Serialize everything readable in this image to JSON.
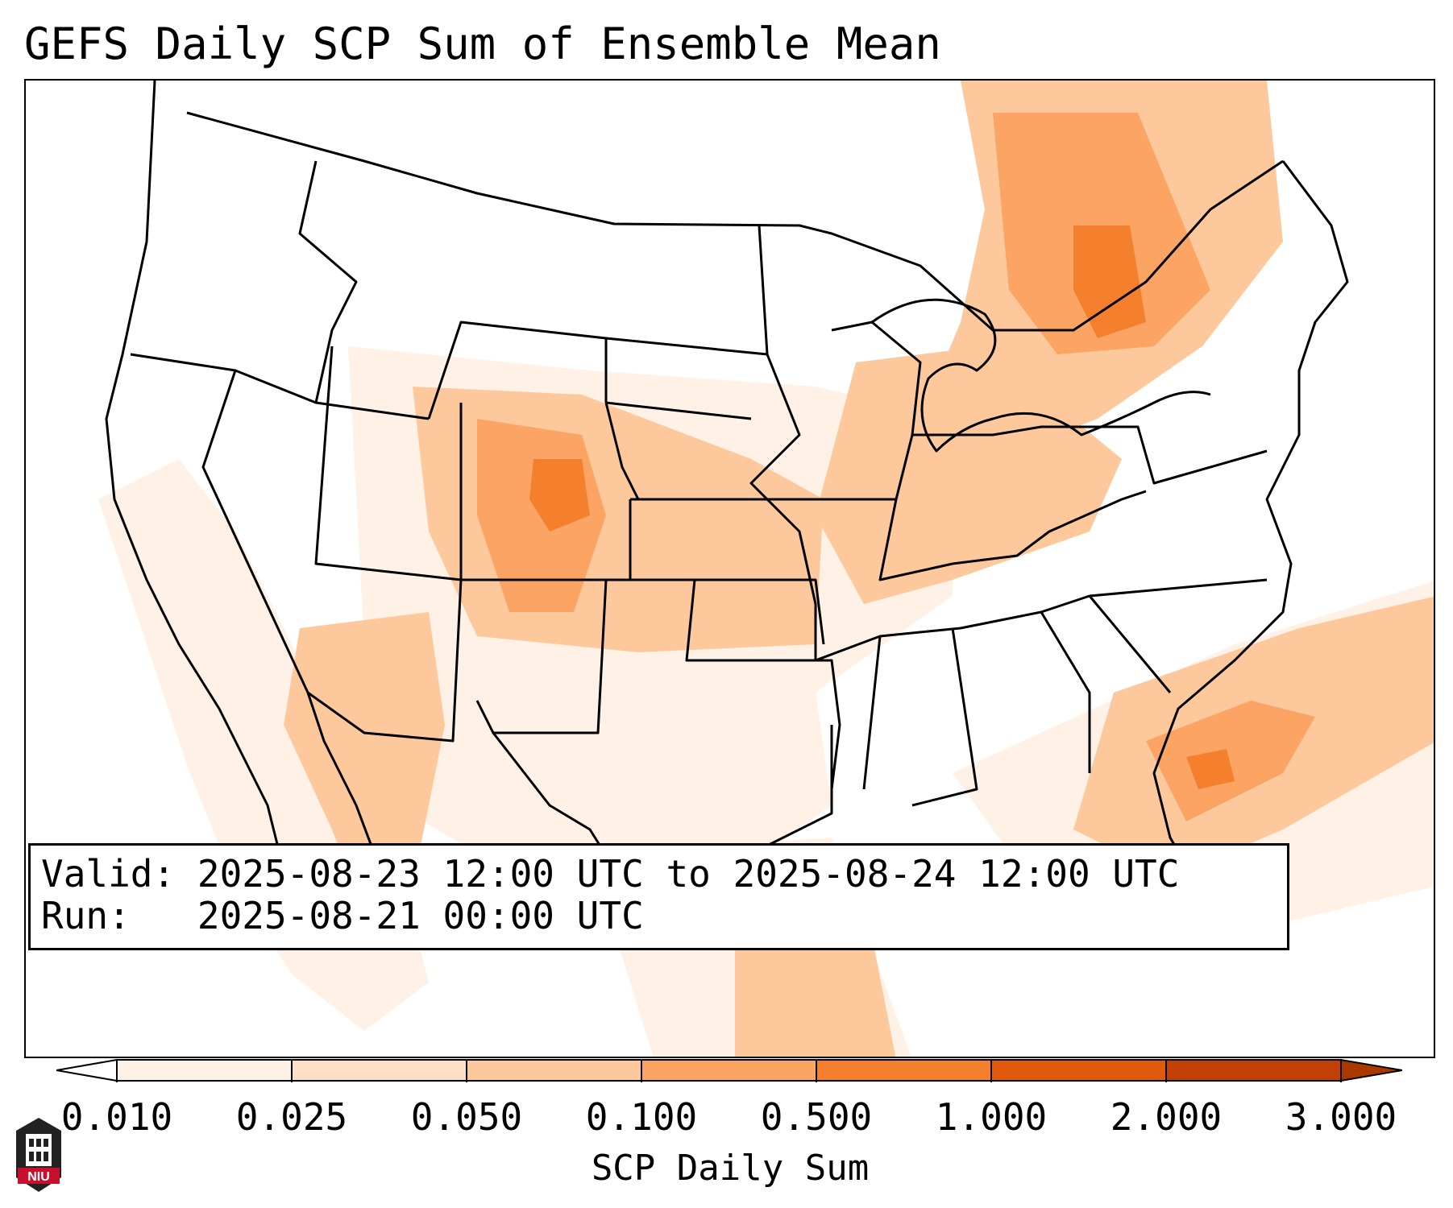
{
  "title": "GEFS Daily SCP Sum of Ensemble Mean",
  "info": {
    "valid_label": "Valid:",
    "valid_text": "2025-08-23 12:00 UTC to 2025-08-24 12:00 UTC",
    "run_label": "Run:",
    "run_text": "2025-08-21 00:00 UTC"
  },
  "colorbar": {
    "label": "SCP Daily Sum",
    "ticks": [
      "0.010",
      "0.025",
      "0.050",
      "0.100",
      "0.500",
      "1.000",
      "2.000",
      "3.000"
    ],
    "colors": [
      "#fff1e6",
      "#fee0c6",
      "#fdc99c",
      "#fba464",
      "#f4802e",
      "#e0590c",
      "#c24005"
    ]
  },
  "logo": {
    "text": "NIU"
  }
}
